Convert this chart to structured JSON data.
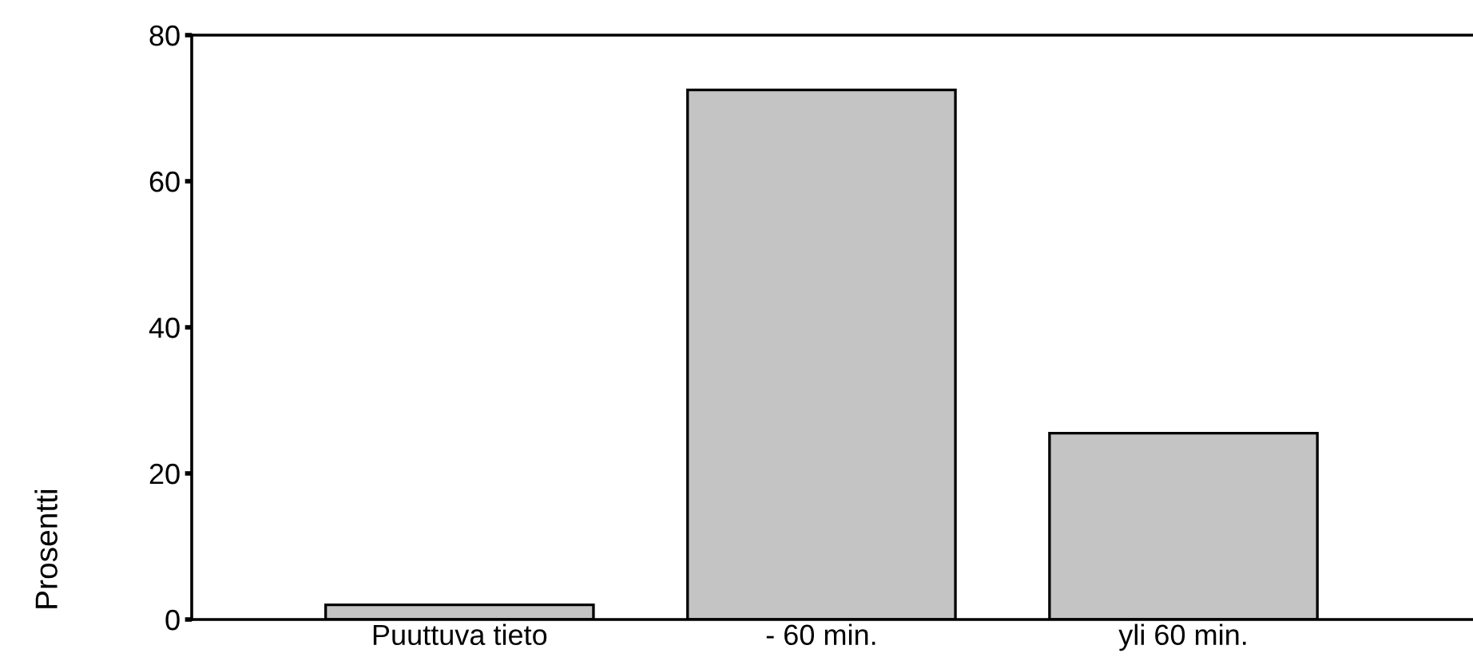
{
  "chart_data": {
    "type": "bar",
    "ylabel": "Prosentti",
    "categories": [
      "Puuttuva tieto",
      "- 60 min.",
      "yli 60 min."
    ],
    "values": [
      2,
      72.5,
      25.5
    ],
    "color": "#c4c4c4",
    "ylim": [
      0,
      80
    ],
    "yticks": [
      0,
      20,
      40,
      60,
      80
    ],
    "grid": false
  }
}
